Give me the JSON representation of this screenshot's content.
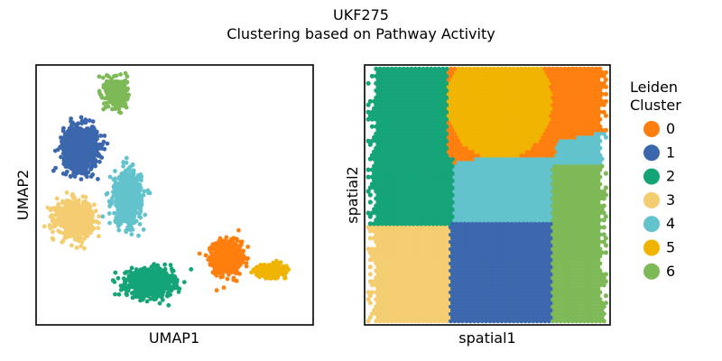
{
  "figure": {
    "title_line1": "UKF275",
    "title_line2": "Clustering based on Pathway Activity"
  },
  "legend": {
    "title_line1": "Leiden",
    "title_line2": "Cluster",
    "placement": "right"
  },
  "cluster_colors": {
    "0": "#ff7f0e",
    "1": "#3b67ad",
    "2": "#14a478",
    "3": "#f5cd71",
    "4": "#63c3cd",
    "5": "#f0b400",
    "6": "#7eb957"
  },
  "chart_data": [
    {
      "type": "scatter",
      "name": "umap",
      "xlabel": "UMAP1",
      "ylabel": "UMAP2",
      "xlim": [
        0,
        10
      ],
      "ylim": [
        0,
        10
      ],
      "ticks_shown": false,
      "grid": false,
      "clusters": [
        {
          "label": "0",
          "centroid": [
            6.9,
            2.6
          ],
          "spread": [
            0.45,
            0.55
          ],
          "n": 1100
        },
        {
          "label": "1",
          "centroid": [
            1.6,
            6.8
          ],
          "spread": [
            0.55,
            0.75
          ],
          "n": 1000
        },
        {
          "label": "2",
          "centroid": [
            4.1,
            1.6
          ],
          "spread": [
            0.75,
            0.45
          ],
          "n": 900
        },
        {
          "label": "3",
          "centroid": [
            1.4,
            4.1
          ],
          "spread": [
            0.6,
            0.6
          ],
          "n": 650
        },
        {
          "label": "4",
          "centroid": [
            3.3,
            4.9
          ],
          "spread": [
            0.45,
            0.9
          ],
          "n": 700
        },
        {
          "label": "5",
          "centroid": [
            8.5,
            2.1
          ],
          "spread": [
            0.45,
            0.2
          ],
          "n": 350
        },
        {
          "label": "6",
          "centroid": [
            2.9,
            8.9
          ],
          "spread": [
            0.35,
            0.55
          ],
          "n": 320
        }
      ]
    },
    {
      "type": "scatter",
      "name": "spatial",
      "xlabel": "spatial1",
      "ylabel": "spatial2",
      "xlim": [
        0,
        10
      ],
      "ylim": [
        0,
        10
      ],
      "ticks_shown": false,
      "grid": false,
      "regions": [
        {
          "label": "0",
          "description": "upper band"
        },
        {
          "label": "1",
          "description": "lower center"
        },
        {
          "label": "2",
          "description": "left"
        },
        {
          "label": "3",
          "description": "lower left"
        },
        {
          "label": "4",
          "description": "center band"
        },
        {
          "label": "5",
          "description": "upper center"
        },
        {
          "label": "6",
          "description": "right edge"
        }
      ]
    }
  ]
}
